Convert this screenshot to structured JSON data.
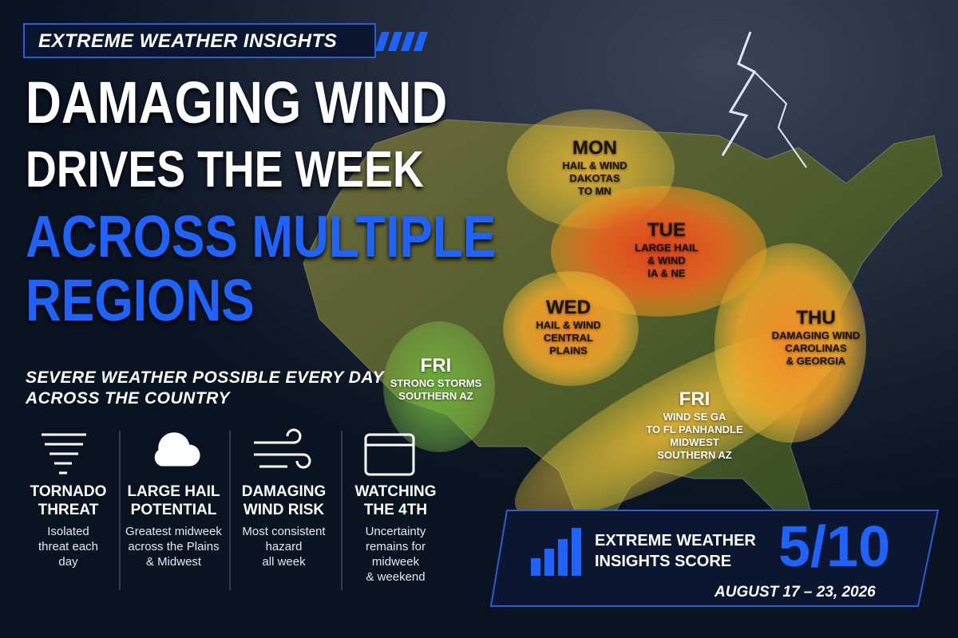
{
  "header": {
    "tag": "EXTREME WEATHER INSIGHTS",
    "title_lines": [
      "DAMAGING WIND",
      "DRIVES THE WEEK"
    ],
    "highlight_lines": [
      "ACROSS MULTIPLE",
      "REGIONS"
    ],
    "subtitle_lines": [
      "SEVERE WEATHER POSSIBLE EVERY DAY",
      "ACROSS THE COUNTRY"
    ]
  },
  "threats": [
    {
      "title_lines": [
        "TORNADO",
        "THREAT"
      ],
      "text_lines": [
        "Isolated",
        "threat each",
        "day"
      ]
    },
    {
      "title_lines": [
        "LARGE HAIL",
        "POTENTIAL"
      ],
      "text_lines": [
        "Greatest midweek",
        "across the Plains",
        "& Midwest"
      ]
    },
    {
      "title_lines": [
        "DAMAGING",
        "WIND RISK"
      ],
      "text_lines": [
        "Most consistent",
        "hazard",
        "all week"
      ]
    },
    {
      "title_lines": [
        "WATCHING",
        "THE 4TH"
      ],
      "text_lines": [
        "Uncertainty",
        "remains for",
        "midweek",
        "& weekend"
      ]
    }
  ],
  "regions": [
    {
      "day": "MON",
      "lines": [
        "HAIL & WIND",
        "DAKOTAS",
        "TO MN"
      ]
    },
    {
      "day": "TUE",
      "lines": [
        "LARGE HAIL",
        "& WIND",
        "IA & NE"
      ]
    },
    {
      "day": "WED",
      "lines": [
        "HAIL & WIND",
        "CENTRAL",
        "PLAINS"
      ]
    },
    {
      "day": "THU",
      "lines": [
        "DAMAGING WIND",
        "CAROLINAS",
        "& GEORGIA"
      ]
    },
    {
      "day": "FRI",
      "lines": [
        "STRONG STORMS",
        "SOUTHERN AZ"
      ]
    },
    {
      "day": "FRI",
      "lines": [
        "WIND SE GA",
        "TO FL PANHANDLE",
        "MIDWEST",
        "SOUTHERN AZ"
      ]
    }
  ],
  "score": {
    "label_lines": [
      "EXTREME WEATHER",
      "INSIGHTS SCORE"
    ],
    "value": "5/10",
    "dates": "AUGUST 17 – 23, 2026"
  }
}
